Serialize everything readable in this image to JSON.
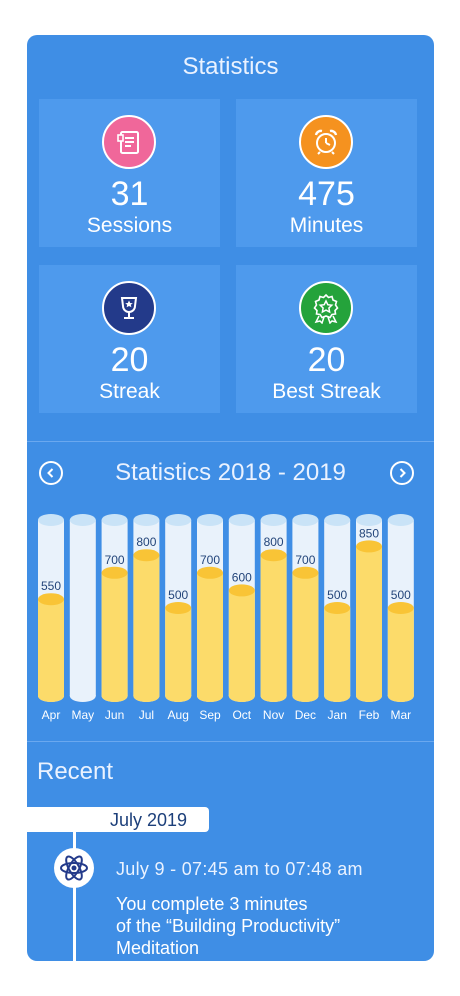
{
  "header": {
    "title": "Statistics"
  },
  "tiles": [
    {
      "value": "31",
      "label": "Sessions",
      "icon": "document-icon",
      "color": "#f0679a"
    },
    {
      "value": "475",
      "label": "Minutes",
      "icon": "alarm-clock-icon",
      "color": "#f5921f"
    },
    {
      "value": "20",
      "label": "Streak",
      "icon": "trophy-cup-icon",
      "color": "#233a8a"
    },
    {
      "value": "20",
      "label": "Best Streak",
      "icon": "award-ribbon-icon",
      "color": "#24a33b"
    }
  ],
  "stats": {
    "title": "Statistics 2018 - 2019",
    "prev_icon": "chevron-left-icon",
    "next_icon": "chevron-right-icon"
  },
  "chart_data": {
    "type": "bar",
    "categories": [
      "Apr",
      "May",
      "Jun",
      "Jul",
      "Aug",
      "Sep",
      "Oct",
      "Nov",
      "Dec",
      "Jan",
      "Feb",
      "Mar"
    ],
    "values": [
      550,
      0,
      700,
      800,
      500,
      700,
      600,
      800,
      700,
      500,
      850,
      500
    ],
    "value_labels": [
      "550",
      "",
      "700",
      "800",
      "500",
      "700",
      "600",
      "800",
      "700",
      "500",
      "850",
      "500"
    ],
    "ylim": [
      0,
      1000
    ],
    "title": "",
    "colors": {
      "fill": "#fcdb6a",
      "cap": "#f9c436",
      "track": "#e9f2fb",
      "track_cap": "#c9e3f7"
    }
  },
  "recent": {
    "title": "Recent",
    "month": "July 2019",
    "entry_time": "July 9 - 07:45 am to 07:48 am",
    "entry_line1": "You complete 3 minutes",
    "entry_line2": "of the “Building Productivity”",
    "entry_line3": "Meditation",
    "entry_icon": "atom-icon"
  },
  "colors": {
    "card": "#3f8ee5",
    "tile": "#4e9aed"
  }
}
